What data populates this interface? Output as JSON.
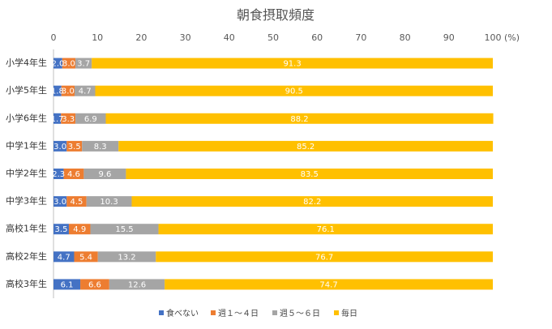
{
  "chart_data": {
    "type": "bar",
    "orientation": "horizontal",
    "stacked": true,
    "title": "朝食摂取頻度",
    "unit_label": "(%)",
    "xlim": [
      0,
      100
    ],
    "x_ticks": [
      0,
      10,
      20,
      30,
      40,
      50,
      60,
      70,
      80,
      90,
      100
    ],
    "categories": [
      "小学4年生",
      "小学5年生",
      "小学6年生",
      "中学1年生",
      "中学2年生",
      "中学3年生",
      "高校1年生",
      "高校2年生",
      "高校3年生"
    ],
    "series": [
      {
        "name": "食べない",
        "color": "#4472C4",
        "values": [
          2.0,
          1.8,
          1.7,
          3.0,
          2.3,
          3.0,
          3.5,
          4.7,
          6.1
        ],
        "labels": [
          "2.0",
          "1.8",
          "1.7",
          "3.0",
          "2.3",
          "3.0",
          "3.5",
          "4.7",
          "6.1"
        ]
      },
      {
        "name": "週１～４日",
        "color": "#ED7D31",
        "values": [
          3.0,
          3.0,
          3.3,
          3.5,
          4.6,
          4.5,
          4.9,
          5.4,
          6.6
        ],
        "labels": [
          "3.0",
          "3.0",
          "3.3",
          "3.5",
          "4.6",
          "4.5",
          "4.9",
          "5.4",
          "6.6"
        ]
      },
      {
        "name": "週５～６日",
        "color": "#A5A5A5",
        "values": [
          3.7,
          4.7,
          6.9,
          8.3,
          9.6,
          10.3,
          15.5,
          13.2,
          12.6
        ],
        "labels": [
          "3.7",
          "4.7",
          "6.9",
          "8.3",
          "9.6",
          "10.3",
          "15.5",
          "13.2",
          "12.6"
        ]
      },
      {
        "name": "毎日",
        "color": "#FFC000",
        "values": [
          91.3,
          90.5,
          88.2,
          85.2,
          83.5,
          82.2,
          76.1,
          76.7,
          74.7
        ],
        "labels": [
          "91.3",
          "90.5",
          "88.2",
          "85.2",
          "83.5",
          "82.2",
          "76.1",
          "76.7",
          "74.7"
        ]
      }
    ],
    "legend_position": "bottom",
    "grid": false
  }
}
